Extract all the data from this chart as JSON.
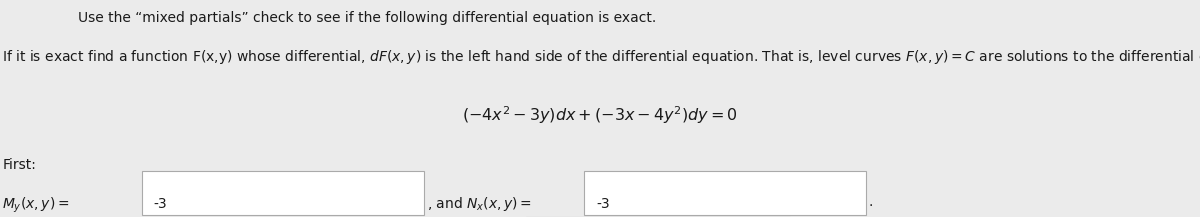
{
  "bg_color": "#ebebeb",
  "text_color": "#1a1a1a",
  "box_color": "#ffffff",
  "box_edge_color": "#aaaaaa",
  "font_size": 10.0,
  "eq_font_size": 11.5
}
